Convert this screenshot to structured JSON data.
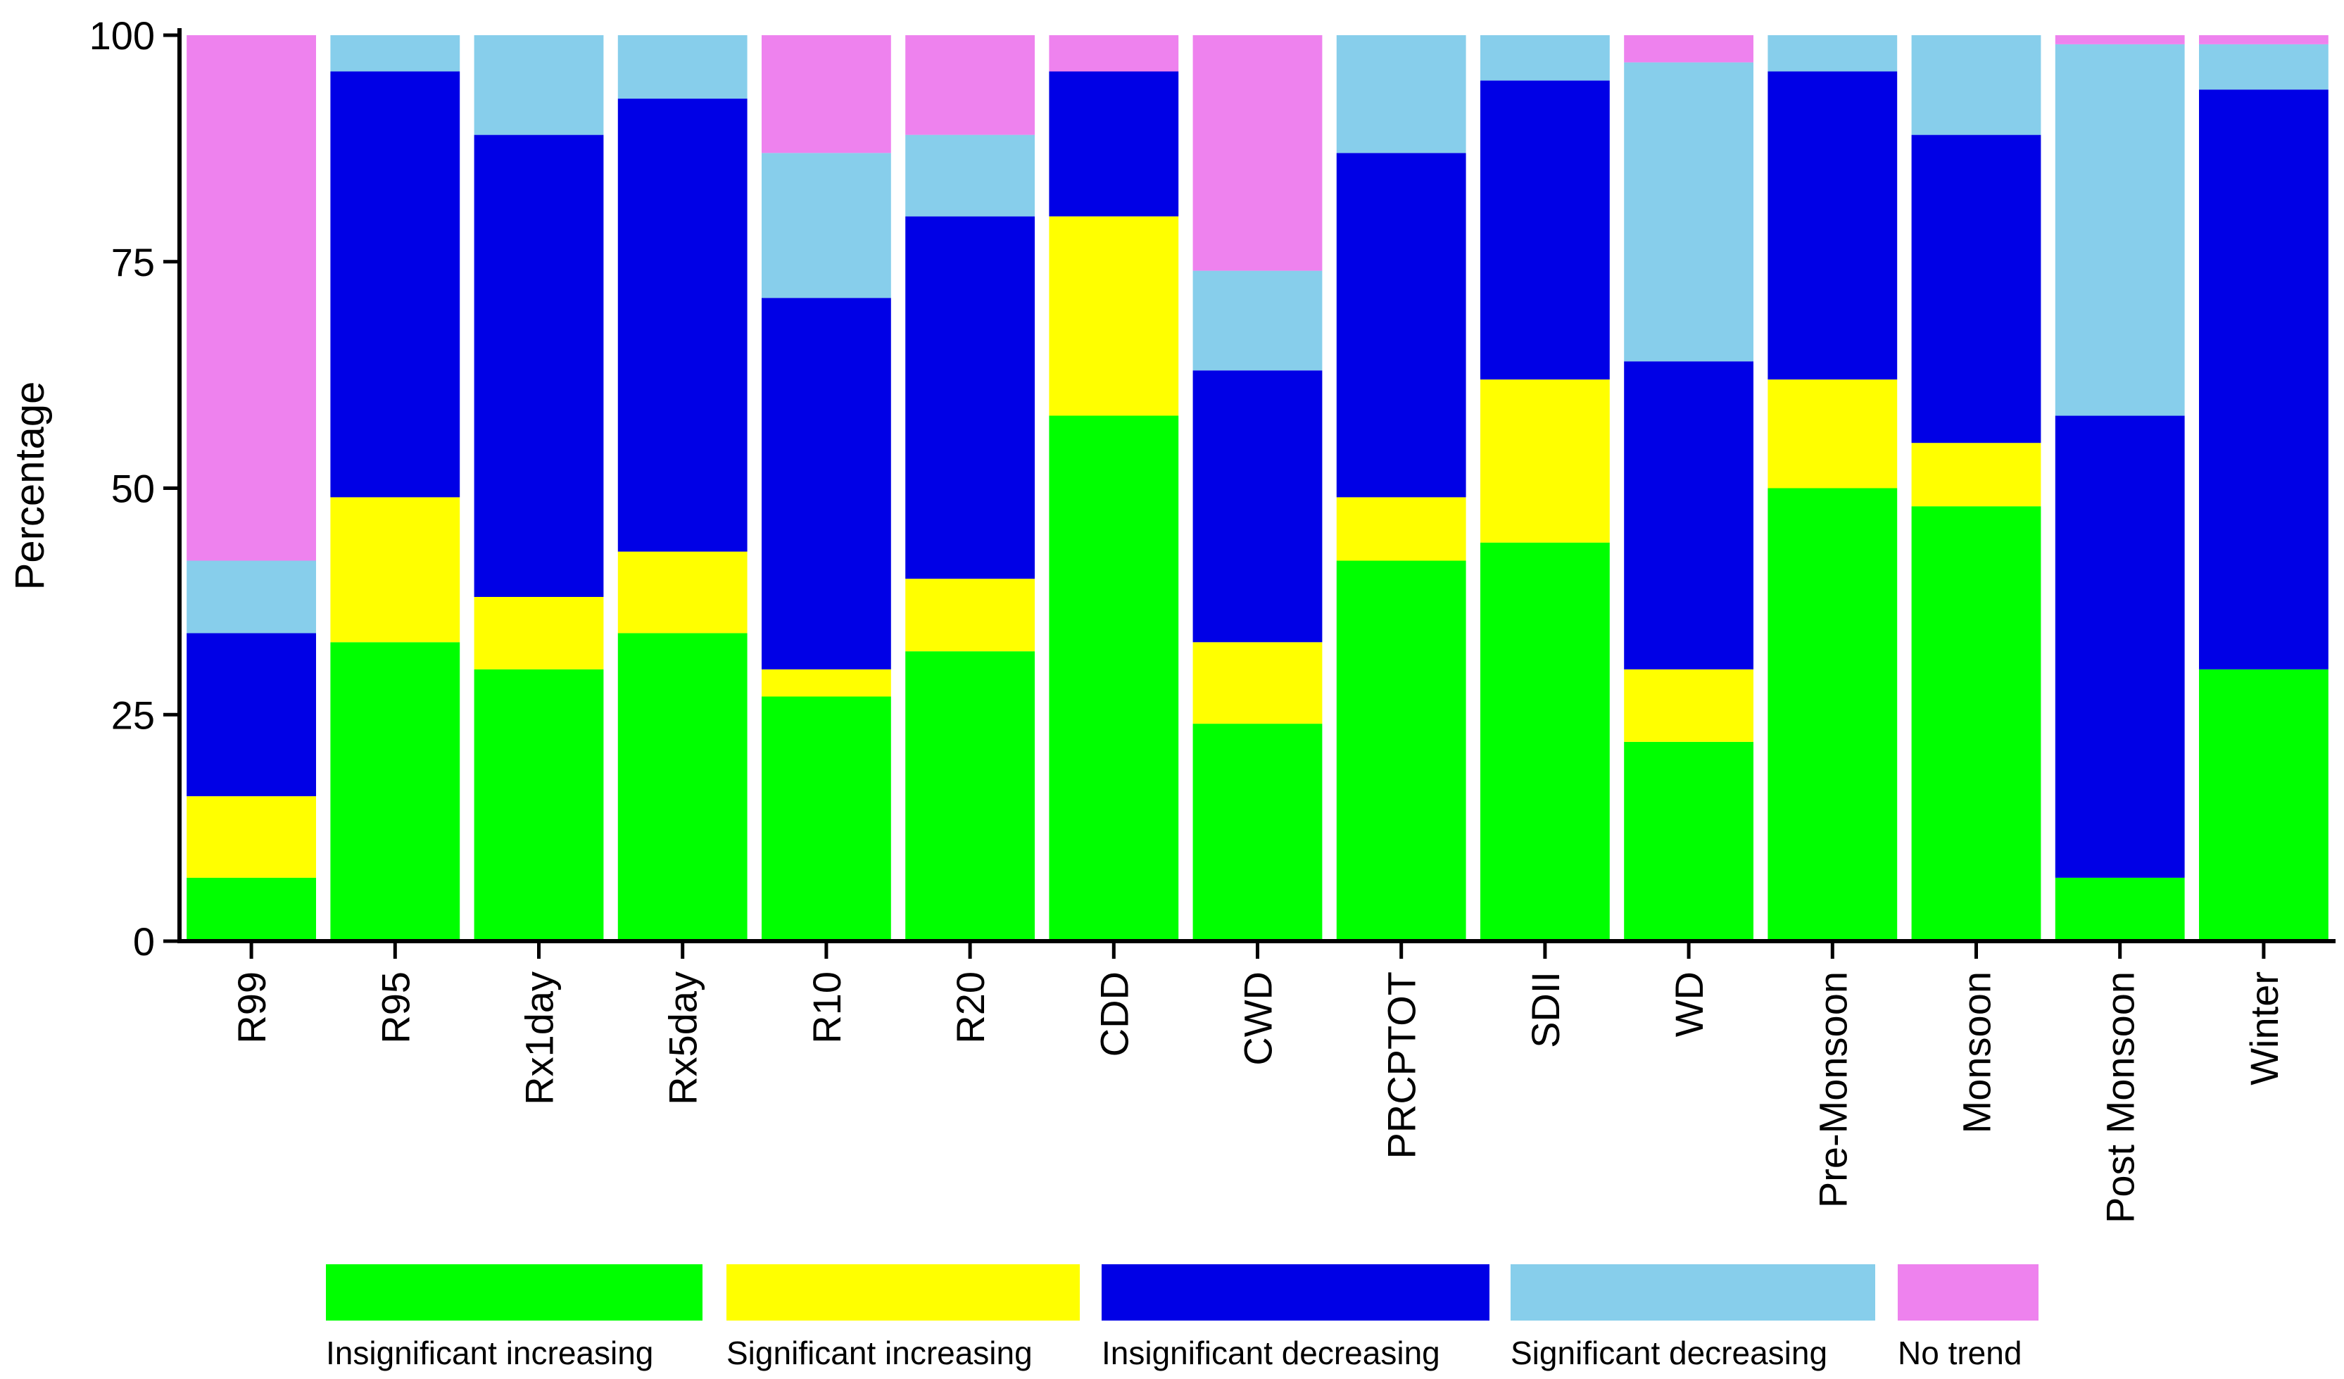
{
  "chart_data": {
    "type": "bar",
    "stacked": true,
    "categories": [
      "R99",
      "R95",
      "Rx1day",
      "Rx5day",
      "R10",
      "R20",
      "CDD",
      "CWD",
      "PRCPTOT",
      "SDII",
      "WD",
      "Pre-Monsoon",
      "Monsoon",
      "Post Monsoon",
      "Winter"
    ],
    "series": [
      {
        "name": "Insignificant increasing",
        "color": "#00ff00",
        "values": [
          7,
          33,
          30,
          34,
          27,
          32,
          58,
          24,
          42,
          44,
          22,
          50,
          48,
          7,
          30
        ]
      },
      {
        "name": "Significant increasing",
        "color": "#ffff00",
        "values": [
          9,
          16,
          8,
          9,
          3,
          8,
          22,
          9,
          7,
          18,
          8,
          12,
          7,
          0,
          0
        ]
      },
      {
        "name": "Insignificant decreasing",
        "color": "#0000e6",
        "values": [
          18,
          47,
          51,
          50,
          41,
          40,
          16,
          30,
          38,
          33,
          34,
          34,
          34,
          51,
          64
        ]
      },
      {
        "name": "Significant decreasing",
        "color": "#87ceeb",
        "values": [
          8,
          4,
          11,
          7,
          16,
          9,
          0,
          11,
          13,
          5,
          33,
          4,
          11,
          41,
          5
        ]
      },
      {
        "name": "No trend",
        "color": "#ee82ee",
        "values": [
          58,
          0,
          0,
          0,
          13,
          11,
          4,
          26,
          0,
          0,
          3,
          0,
          0,
          1,
          1
        ]
      }
    ],
    "ylabel": "Percentage",
    "xlabel": "",
    "title": "",
    "ylim": [
      0,
      100
    ],
    "yticks": [
      0,
      25,
      50,
      75,
      100
    ],
    "grid": false,
    "legend_position": "bottom"
  }
}
